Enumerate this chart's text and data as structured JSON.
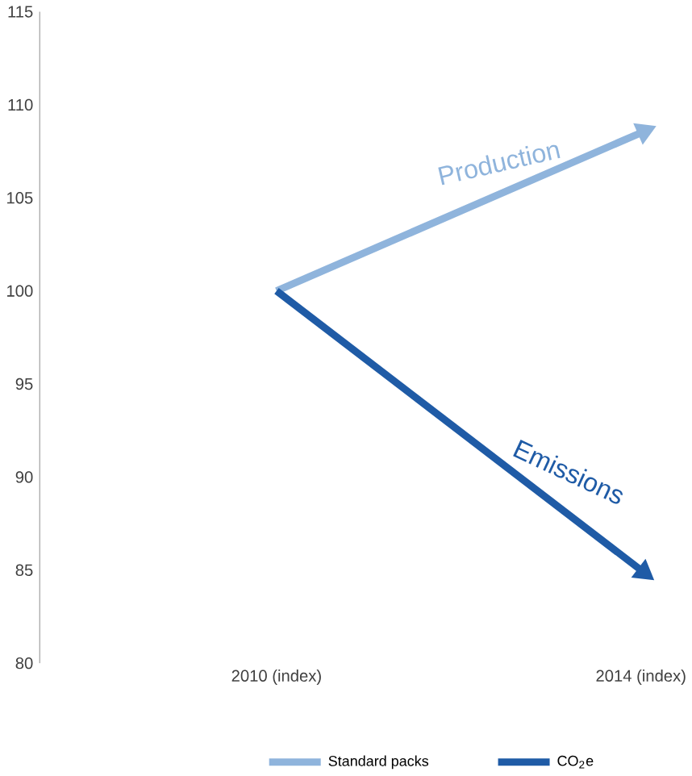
{
  "chart_data": {
    "type": "line",
    "categories": [
      "2010 (index)",
      "2014 (index)"
    ],
    "series": [
      {
        "name": "Standard packs",
        "color": "#8fb4dc",
        "values": [
          100,
          108.5
        ]
      },
      {
        "name": "CO$_{2}$e",
        "color": "#1f5ba6",
        "values": [
          100,
          85
        ]
      }
    ],
    "ylim": [
      80,
      115
    ],
    "yticks": [
      80,
      85,
      90,
      95,
      100,
      105,
      110,
      115
    ],
    "annotations": [
      "Production",
      "Emissions"
    ],
    "legend": "bottom",
    "grid": false
  }
}
